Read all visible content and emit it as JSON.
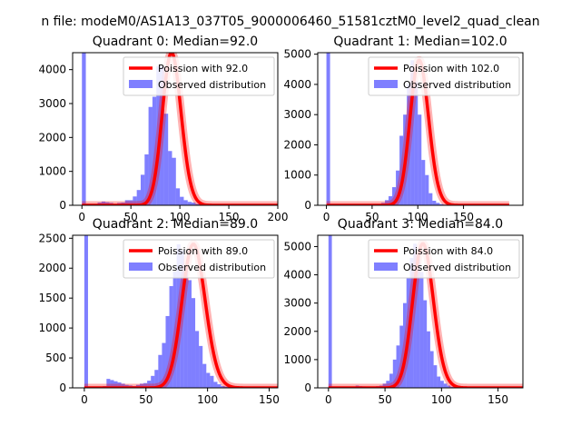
{
  "suptitle": "n file: modeM0/AS1A13_037T05_9000006460_51581cztM0_level2_quad_clean",
  "colors": {
    "observed": "#0000ff",
    "poisson": "#ff0000",
    "axis": "#000000"
  },
  "chart_data": [
    {
      "type": "bar",
      "title": "Quadrant 0: Median=92.0",
      "xlabel": "",
      "ylabel": "",
      "xlim": [
        -9.5,
        200
      ],
      "ylim": [
        0,
        4500
      ],
      "xticks": [
        0,
        50,
        100,
        150,
        200
      ],
      "yticks": [
        0,
        1000,
        2000,
        3000,
        4000
      ],
      "legend": {
        "position": "top-right",
        "entries": [
          "Poission with 92.0",
          "Observed distribution"
        ]
      },
      "series": [
        {
          "name": "Observed distribution",
          "kind": "histogram",
          "bin_width": 4,
          "bin_start": 0,
          "values": [
            4500,
            0,
            0,
            0,
            80,
            110,
            90,
            70,
            40,
            70,
            80,
            150,
            150,
            260,
            450,
            900,
            1500,
            2900,
            3200,
            4100,
            4100,
            2700,
            1600,
            1400,
            500,
            250,
            150,
            100,
            80,
            40,
            30,
            20,
            10,
            8,
            5,
            4,
            3,
            2,
            1,
            1,
            1,
            1,
            1,
            1,
            1,
            1,
            1,
            1
          ]
        },
        {
          "name": "Poission with 92.0",
          "kind": "poisson",
          "lambda": 92.0,
          "scale": 4500
        }
      ]
    },
    {
      "type": "bar",
      "title": "Quadrant 1: Median=102.0",
      "xlabel": "",
      "ylabel": "",
      "xlim": [
        -9.5,
        215
      ],
      "ylim": [
        0,
        5050
      ],
      "xticks": [
        0,
        50,
        100,
        150
      ],
      "yticks": [
        0,
        1000,
        2000,
        3000,
        4000,
        5000
      ],
      "legend": {
        "position": "top-right",
        "entries": [
          "Poission with 102.0",
          "Observed distribution"
        ]
      },
      "series": [
        {
          "name": "Observed distribution",
          "kind": "histogram",
          "bin_width": 4,
          "bin_start": 0,
          "values": [
            5050,
            0,
            0,
            0,
            10,
            20,
            20,
            20,
            20,
            20,
            20,
            20,
            20,
            30,
            40,
            80,
            170,
            300,
            600,
            1150,
            2300,
            3000,
            4000,
            4800,
            4100,
            3000,
            1500,
            1000,
            400,
            150,
            80,
            40,
            20,
            10,
            8,
            5,
            3,
            2,
            1,
            1,
            1,
            1,
            1,
            1,
            1,
            1,
            1,
            1,
            1,
            1,
            1,
            1,
            1,
            1
          ]
        },
        {
          "name": "Poission with 102.0",
          "kind": "poisson",
          "lambda": 102.0,
          "scale": 4800
        }
      ]
    },
    {
      "type": "bar",
      "title": "Quadrant 2: Median=89.0",
      "xlabel": "",
      "ylabel": "",
      "xlim": [
        -9.5,
        157
      ],
      "ylim": [
        0,
        2550
      ],
      "xticks": [
        0,
        50,
        100,
        150
      ],
      "yticks": [
        0,
        500,
        1000,
        1500,
        2000,
        2500
      ],
      "legend": {
        "position": "top-right",
        "entries": [
          "Poission with 89.0",
          "Observed distribution"
        ]
      },
      "series": [
        {
          "name": "Observed distribution",
          "kind": "histogram",
          "bin_width": 3,
          "bin_start": 0,
          "values": [
            2550,
            0,
            0,
            0,
            0,
            30,
            150,
            130,
            110,
            90,
            70,
            50,
            40,
            30,
            50,
            70,
            80,
            120,
            200,
            300,
            550,
            750,
            1200,
            1700,
            1950,
            2400,
            2300,
            2050,
            1800,
            1500,
            950,
            700,
            400,
            250,
            200,
            100,
            60,
            30,
            20,
            10,
            5,
            3,
            2,
            1,
            1,
            1,
            1,
            1,
            1,
            1
          ]
        },
        {
          "name": "Poission with 89.0",
          "kind": "poisson",
          "lambda": 89.0,
          "scale": 2400
        }
      ]
    },
    {
      "type": "bar",
      "title": "Quadrant 3: Median=84.0",
      "xlabel": "",
      "ylabel": "",
      "xlim": [
        -9.5,
        172
      ],
      "ylim": [
        0,
        5400
      ],
      "xticks": [
        0,
        50,
        100,
        150
      ],
      "yticks": [
        0,
        1000,
        2000,
        3000,
        4000,
        5000
      ],
      "legend": {
        "position": "top-right",
        "entries": [
          "Poission with 84.0",
          "Observed distribution"
        ]
      },
      "series": [
        {
          "name": "Observed distribution",
          "kind": "histogram",
          "bin_width": 3,
          "bin_start": 0,
          "values": [
            5400,
            0,
            0,
            0,
            0,
            0,
            30,
            40,
            80,
            60,
            50,
            40,
            30,
            30,
            60,
            80,
            150,
            250,
            500,
            1000,
            1500,
            2200,
            3000,
            3900,
            4600,
            5100,
            4700,
            4100,
            3100,
            2000,
            1300,
            800,
            400,
            250,
            150,
            80,
            40,
            20,
            10,
            5,
            3,
            2,
            1,
            1,
            1,
            1,
            1,
            1,
            1,
            1,
            1,
            1,
            1,
            1,
            1
          ]
        },
        {
          "name": "Poission with 84.0",
          "kind": "poisson",
          "lambda": 84.0,
          "scale": 5100
        }
      ]
    }
  ]
}
